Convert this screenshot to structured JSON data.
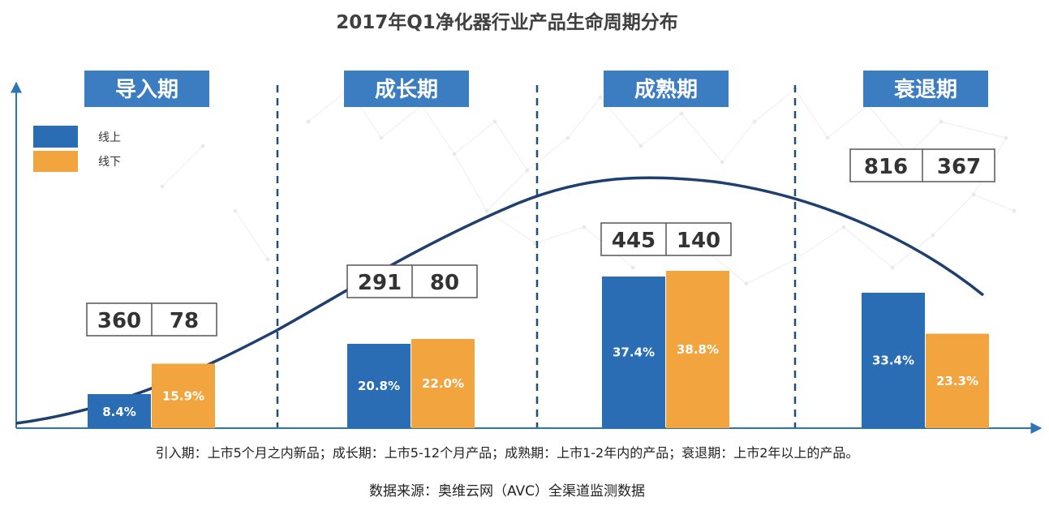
{
  "chart_data": {
    "type": "bar",
    "title": "2017年Q1净化器行业产品生命周期分布",
    "categories": [
      "导入期",
      "成长期",
      "成熟期",
      "衰退期"
    ],
    "series": [
      {
        "name": "线上",
        "color": "#2a6db5",
        "values": [
          8.4,
          20.8,
          37.4,
          33.4
        ],
        "labels": [
          "8.4%",
          "20.8%",
          "37.4%",
          "33.4%"
        ]
      },
      {
        "name": "线下",
        "color": "#f2a53f",
        "values": [
          15.9,
          22.0,
          38.8,
          23.3
        ],
        "labels": [
          "15.9%",
          "22.0%",
          "38.8%",
          "23.3%"
        ]
      }
    ],
    "counts": [
      {
        "online": "360",
        "offline": "78"
      },
      {
        "online": "291",
        "offline": "80"
      },
      {
        "online": "445",
        "offline": "140"
      },
      {
        "online": "816",
        "offline": "367"
      }
    ],
    "ylim": [
      0,
      50
    ],
    "legend": "top-left",
    "grid": false,
    "note": "引入期：上市5个月之内新品；成长期：上市5-12个月产品；成熟期：上市1-2年内的产品；衰退期：上市2年以上的产品。",
    "source": "数据来源：奥维云网（AVC）全渠道监测数据"
  },
  "colors": {
    "phase_box": "#3b7dc0",
    "curve": "#1f3f6e",
    "axis": "#2e75b6",
    "divider": "#1f4e79"
  }
}
